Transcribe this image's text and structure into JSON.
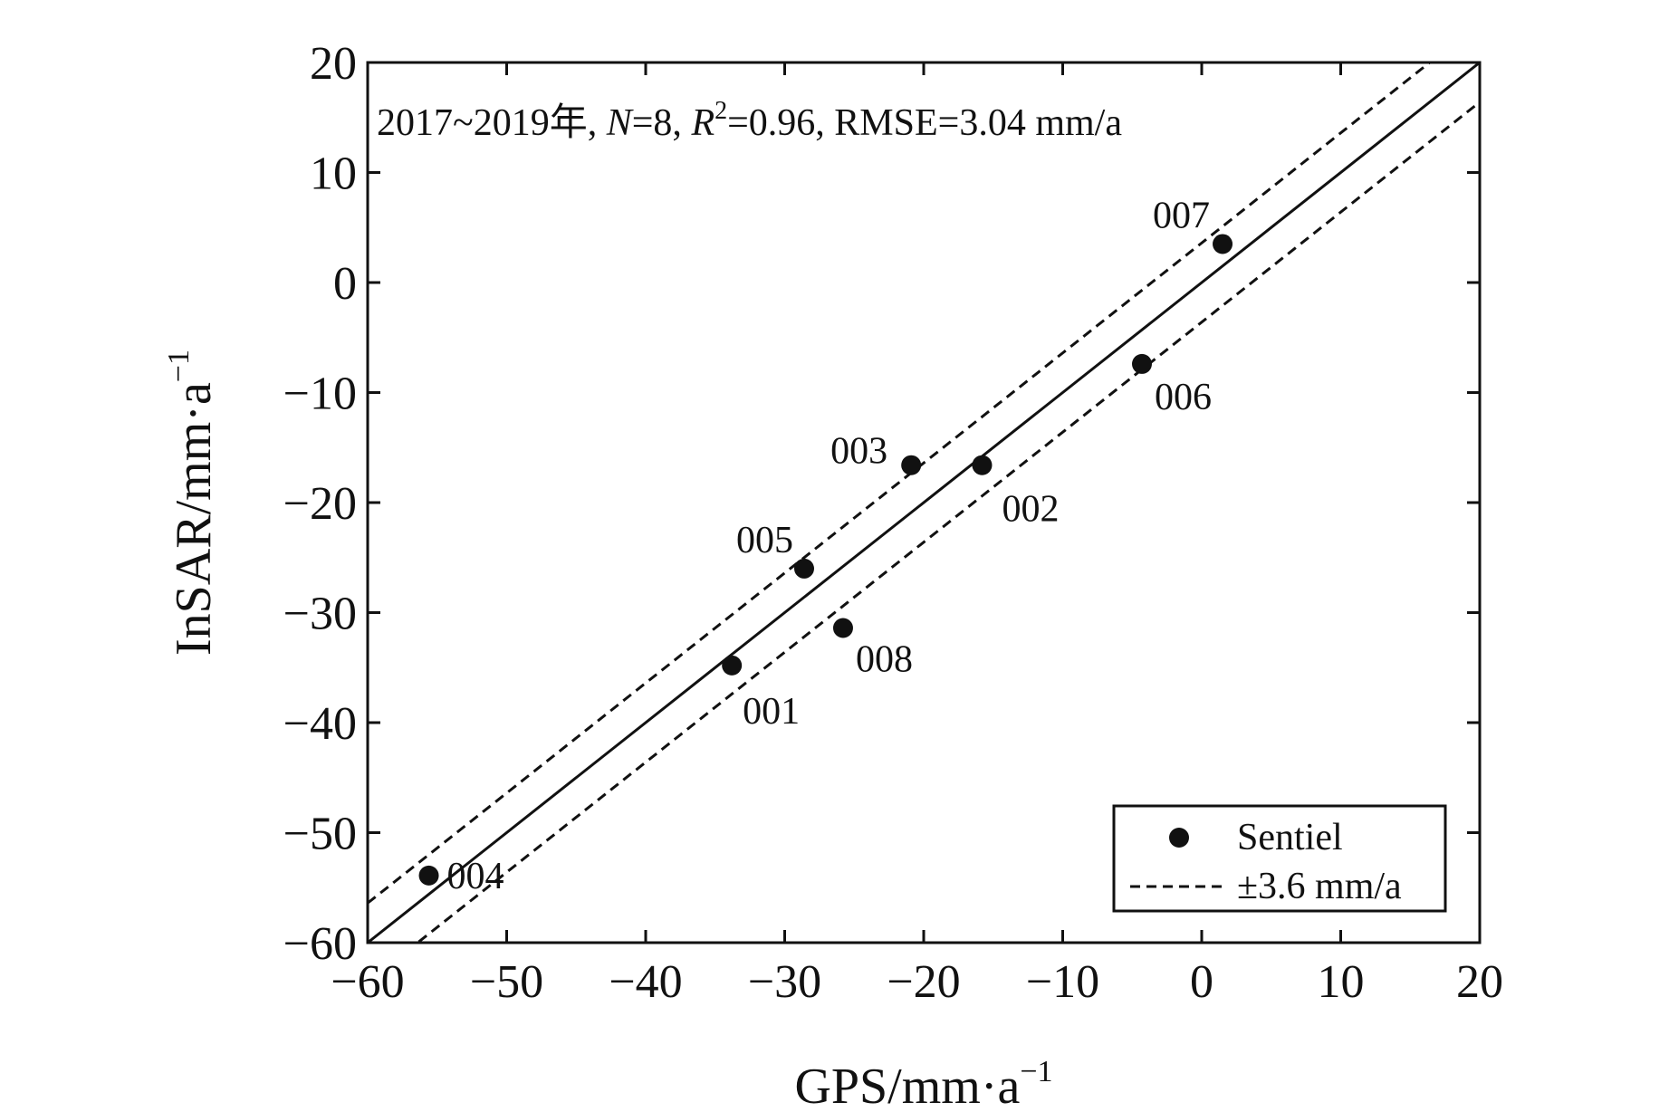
{
  "chart_data": {
    "type": "scatter",
    "xlabel": "GPS/mm·a",
    "xlabel_sup": "−1",
    "ylabel": "InSAR/mm·a",
    "ylabel_sup": "−1",
    "xlim": [
      -60,
      20
    ],
    "ylim": [
      -60,
      20
    ],
    "xticks": [
      -60,
      -50,
      -40,
      -30,
      -20,
      -10,
      0,
      10,
      20
    ],
    "yticks": [
      20,
      10,
      0,
      -10,
      -20,
      -30,
      -40,
      -50,
      -60
    ],
    "xtick_labels": [
      "−60",
      "−50",
      "−40",
      "−30",
      "−20",
      "−10",
      "0",
      "10",
      "20"
    ],
    "ytick_labels": [
      "20",
      "10",
      "0",
      "−10",
      "−20",
      "−30",
      "−40",
      "−50",
      "−60"
    ],
    "annotation": {
      "prefix": "2017~2019年, ",
      "n_symbol": "N",
      "n_text": "=8, ",
      "r_symbol": "R",
      "r_sup": "2",
      "rest": "=0.96, RMSE=3.04 mm/a"
    },
    "series": [
      {
        "name": "Sentiel",
        "points": [
          {
            "id": "001",
            "x": -33.8,
            "y": -34.8
          },
          {
            "id": "002",
            "x": -15.8,
            "y": -16.6
          },
          {
            "id": "003",
            "x": -20.9,
            "y": -16.6
          },
          {
            "id": "004",
            "x": -55.6,
            "y": -53.9
          },
          {
            "id": "005",
            "x": -28.6,
            "y": -26.0
          },
          {
            "id": "006",
            "x": -4.3,
            "y": -7.4
          },
          {
            "id": "007",
            "x": 1.5,
            "y": 3.5
          },
          {
            "id": "008",
            "x": -25.8,
            "y": -31.4
          }
        ]
      }
    ],
    "fit_line": {
      "slope": 1,
      "intercept": 0
    },
    "band": {
      "offset": 3.6
    },
    "legend": {
      "position": "bottom-right",
      "items": [
        {
          "label": "Sentiel",
          "marker": "circle"
        },
        {
          "label": "±3.6 mm/a",
          "marker": "dashed-line"
        }
      ]
    }
  }
}
